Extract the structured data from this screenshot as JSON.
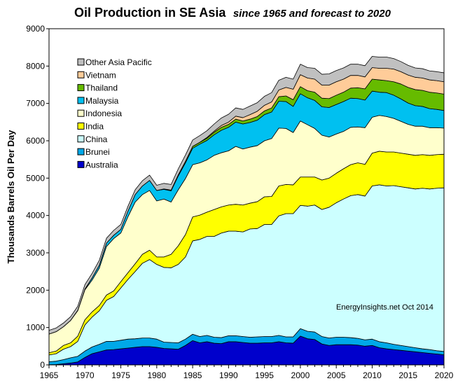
{
  "chart_data": {
    "type": "area",
    "stacked": true,
    "title": "Oil Production in SE Asia",
    "subtitle": "since 1965 and forecast to 2020",
    "ylabel": "Thousands Barrels Oil Per Day",
    "xlabel": "",
    "xlim": [
      1965,
      2020
    ],
    "ylim": [
      0,
      9000
    ],
    "xticks": [
      1965,
      1970,
      1975,
      1980,
      1985,
      1990,
      1995,
      2000,
      2005,
      2010,
      2015,
      2020
    ],
    "yticks": [
      0,
      1000,
      2000,
      3000,
      4000,
      5000,
      6000,
      7000,
      8000,
      9000
    ],
    "grid": false,
    "legend_position": "top-left",
    "annotation": "EnergyInsights.net  Oct 2014",
    "x": [
      1965,
      1966,
      1967,
      1968,
      1969,
      1970,
      1971,
      1972,
      1973,
      1974,
      1975,
      1976,
      1977,
      1978,
      1979,
      1980,
      1981,
      1982,
      1983,
      1984,
      1985,
      1986,
      1987,
      1988,
      1989,
      1990,
      1991,
      1992,
      1993,
      1994,
      1995,
      1996,
      1997,
      1998,
      1999,
      2000,
      2001,
      2002,
      2003,
      2004,
      2005,
      2006,
      2007,
      2008,
      2009,
      2010,
      2011,
      2012,
      2013,
      2014,
      2015,
      2016,
      2017,
      2018,
      2019,
      2020
    ],
    "series": [
      {
        "name": "Australia",
        "color": "#0000cc",
        "values": [
          5,
          10,
          30,
          50,
          80,
          200,
          300,
          350,
          400,
          410,
          430,
          450,
          470,
          490,
          490,
          470,
          440,
          430,
          420,
          520,
          650,
          590,
          620,
          580,
          570,
          620,
          620,
          600,
          580,
          580,
          590,
          590,
          620,
          590,
          580,
          770,
          700,
          680,
          560,
          520,
          540,
          540,
          540,
          530,
          500,
          520,
          460,
          430,
          410,
          390,
          370,
          350,
          330,
          310,
          290,
          270
        ]
      },
      {
        "name": "Brunei",
        "color": "#00a8e8",
        "values": [
          80,
          90,
          110,
          140,
          150,
          170,
          180,
          200,
          230,
          220,
          230,
          240,
          230,
          230,
          230,
          220,
          170,
          170,
          170,
          170,
          170,
          170,
          170,
          160,
          160,
          160,
          160,
          160,
          160,
          170,
          170,
          170,
          170,
          160,
          170,
          200,
          200,
          200,
          200,
          200,
          200,
          200,
          190,
          180,
          170,
          170,
          160,
          160,
          140,
          130,
          120,
          110,
          100,
          100,
          90,
          90
        ]
      },
      {
        "name": "China",
        "color": "#ccffff",
        "values": [
          180,
          200,
          280,
          300,
          400,
          700,
          800,
          900,
          1100,
          1200,
          1400,
          1600,
          1800,
          2000,
          2100,
          2000,
          2000,
          2000,
          2100,
          2200,
          2500,
          2600,
          2650,
          2700,
          2800,
          2800,
          2800,
          2800,
          2900,
          2900,
          3000,
          3000,
          3200,
          3300,
          3300,
          3300,
          3350,
          3400,
          3400,
          3500,
          3600,
          3700,
          3800,
          3850,
          3850,
          4100,
          4200,
          4200,
          4250,
          4250,
          4250,
          4250,
          4300,
          4300,
          4350,
          4380
        ]
      },
      {
        "name": "India",
        "color": "#ffff00",
        "values": [
          60,
          70,
          100,
          100,
          140,
          140,
          140,
          140,
          140,
          150,
          170,
          180,
          210,
          240,
          250,
          200,
          280,
          360,
          500,
          600,
          640,
          650,
          650,
          720,
          700,
          700,
          720,
          720,
          690,
          720,
          740,
          750,
          800,
          780,
          770,
          760,
          780,
          750,
          790,
          780,
          790,
          810,
          830,
          850,
          850,
          880,
          900,
          910,
          900,
          900,
          900,
          900,
          900,
          900,
          900,
          900
        ]
      },
      {
        "name": "Indonesia",
        "color": "#ffffcc",
        "values": [
          500,
          520,
          500,
          600,
          680,
          800,
          850,
          1000,
          1300,
          1400,
          1300,
          1500,
          1650,
          1600,
          1600,
          1500,
          1550,
          1400,
          1500,
          1500,
          1400,
          1400,
          1400,
          1450,
          1450,
          1450,
          1550,
          1500,
          1500,
          1500,
          1500,
          1550,
          1550,
          1500,
          1400,
          1500,
          1400,
          1300,
          1200,
          1100,
          1050,
          1000,
          1000,
          960,
          980,
          960,
          960,
          950,
          900,
          850,
          800,
          780,
          760,
          740,
          720,
          700
        ]
      },
      {
        "name": "Malaysia",
        "color": "#00c0f0",
        "values": [
          0,
          0,
          0,
          0,
          10,
          20,
          60,
          80,
          90,
          90,
          100,
          150,
          200,
          230,
          270,
          280,
          260,
          300,
          370,
          420,
          440,
          500,
          520,
          550,
          600,
          630,
          650,
          670,
          660,
          680,
          700,
          710,
          720,
          720,
          700,
          730,
          720,
          750,
          760,
          790,
          790,
          800,
          780,
          760,
          740,
          700,
          620,
          640,
          620,
          600,
          570,
          550,
          530,
          510,
          490,
          470
        ]
      },
      {
        "name": "Thailand",
        "color": "#66bb00",
        "values": [
          0,
          0,
          0,
          0,
          0,
          0,
          0,
          0,
          0,
          0,
          0,
          0,
          0,
          0,
          0,
          0,
          10,
          20,
          30,
          40,
          50,
          50,
          60,
          70,
          80,
          80,
          80,
          80,
          90,
          100,
          100,
          110,
          120,
          150,
          180,
          190,
          190,
          220,
          230,
          240,
          250,
          250,
          270,
          290,
          300,
          320,
          330,
          320,
          360,
          400,
          420,
          430,
          430,
          440,
          440,
          440
        ]
      },
      {
        "name": "Vietnam",
        "color": "#ffcc99",
        "values": [
          0,
          0,
          0,
          0,
          0,
          0,
          0,
          0,
          0,
          0,
          0,
          0,
          0,
          0,
          0,
          0,
          0,
          0,
          0,
          0,
          0,
          0,
          20,
          30,
          50,
          60,
          80,
          90,
          120,
          140,
          150,
          160,
          180,
          230,
          280,
          320,
          340,
          350,
          350,
          360,
          360,
          350,
          340,
          330,
          320,
          310,
          310,
          330,
          340,
          330,
          330,
          330,
          330,
          330,
          330,
          330
        ]
      },
      {
        "name": "Other Asia Pacific",
        "color": "#c0c0c0",
        "values": [
          100,
          100,
          100,
          100,
          110,
          120,
          120,
          130,
          130,
          130,
          130,
          130,
          130,
          140,
          140,
          140,
          150,
          150,
          160,
          170,
          170,
          180,
          180,
          190,
          200,
          210,
          220,
          220,
          230,
          230,
          240,
          250,
          260,
          270,
          270,
          280,
          280,
          290,
          290,
          300,
          300,
          300,
          300,
          300,
          300,
          300,
          300,
          300,
          280,
          270,
          260,
          250,
          250,
          240,
          240,
          240
        ]
      }
    ]
  }
}
